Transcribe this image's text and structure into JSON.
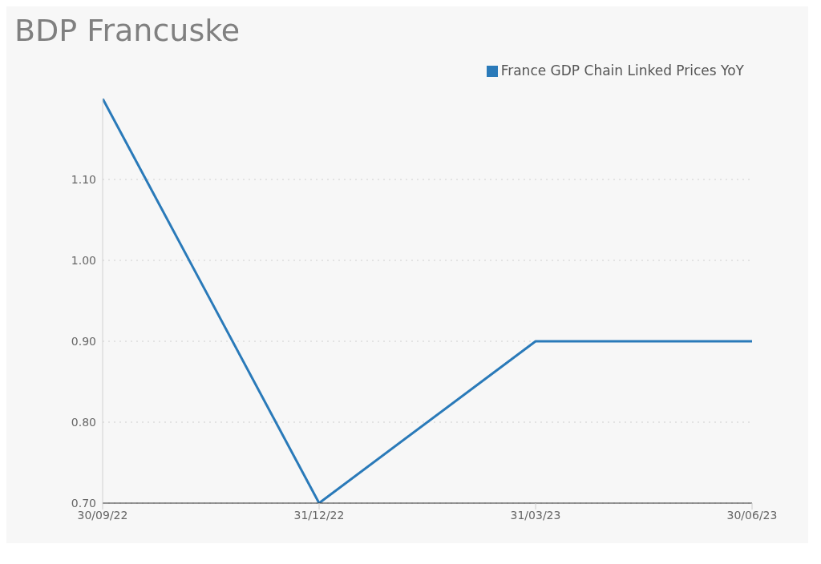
{
  "chart_data": {
    "type": "line",
    "title": "BDP Francuske",
    "categories": [
      "30/09/22",
      "31/12/22",
      "31/03/23",
      "30/06/23"
    ],
    "series": [
      {
        "name": "France GDP Chain Linked Prices YoY",
        "color": "#2a7ab9",
        "values": [
          1.2,
          0.7,
          0.9,
          0.9
        ]
      }
    ],
    "ylim": [
      0.7,
      1.2
    ],
    "yticks": [
      {
        "value": 0.7,
        "label": "0.70"
      },
      {
        "value": 0.8,
        "label": "0.80"
      },
      {
        "value": 0.9,
        "label": "0.90"
      },
      {
        "value": 1.0,
        "label": "1.00"
      },
      {
        "value": 1.1,
        "label": "1.10"
      }
    ],
    "grid": "y",
    "legend": "top right"
  }
}
